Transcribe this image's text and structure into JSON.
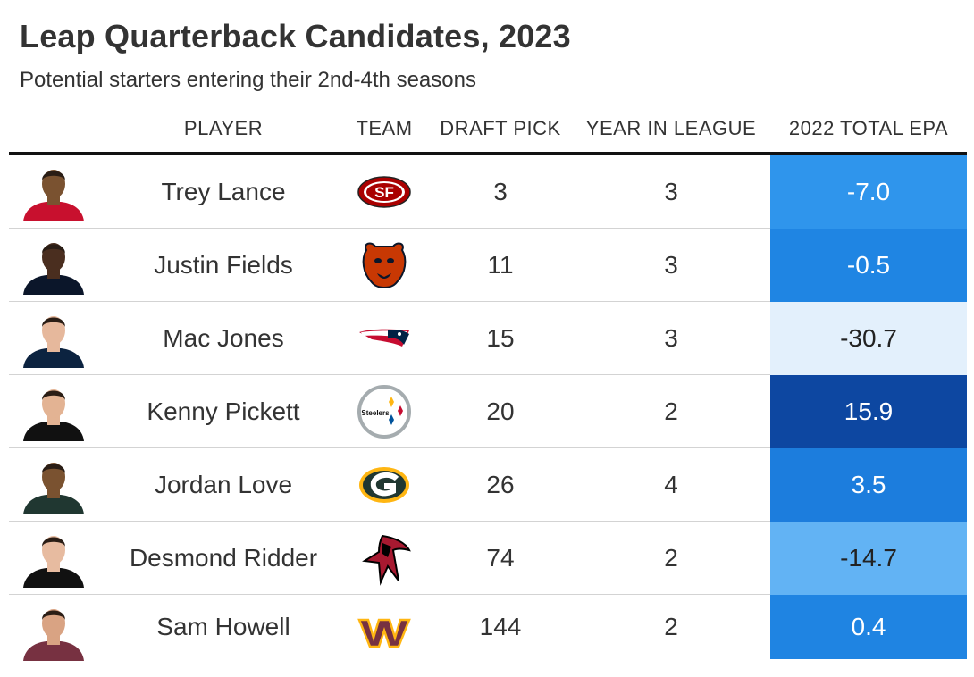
{
  "title": "Leap Quarterback Candidates, 2023",
  "subtitle": "Potential starters entering their 2nd-4th seasons",
  "headers": {
    "player": "PLAYER",
    "team": "TEAM",
    "draft_pick": "DRAFT PICK",
    "year": "YEAR IN LEAGUE",
    "epa": "2022 TOTAL EPA"
  },
  "colors": {
    "epa_neg_high": "#e3f0fc",
    "epa_neg_mid": "#5fb0f3",
    "epa_mid": "#2f95ec",
    "epa_pos": "#1e82e0",
    "epa_top": "#0d47a1"
  },
  "chart_data": {
    "type": "table",
    "columns": [
      "PLAYER",
      "TEAM",
      "DRAFT PICK",
      "YEAR IN LEAGUE",
      "2022 TOTAL EPA"
    ],
    "rows": [
      {
        "player": "Trey Lance",
        "team_logo": "49ers-logo-icon",
        "draft_pick": "3",
        "year": "3",
        "epa": "-7.0",
        "epa_value": -7.0,
        "bg": "#2f95ec",
        "fg": "#ffffff"
      },
      {
        "player": "Justin Fields",
        "team_logo": "bears-logo-icon",
        "draft_pick": "11",
        "year": "3",
        "epa": "-0.5",
        "epa_value": -0.5,
        "bg": "#1f85e3",
        "fg": "#ffffff"
      },
      {
        "player": "Mac Jones",
        "team_logo": "patriots-logo-icon",
        "draft_pick": "15",
        "year": "3",
        "epa": "-30.7",
        "epa_value": -30.7,
        "bg": "#e3f0fc",
        "fg": "#222222"
      },
      {
        "player": "Kenny Pickett",
        "team_logo": "steelers-logo-icon",
        "draft_pick": "20",
        "year": "2",
        "epa": "15.9",
        "epa_value": 15.9,
        "bg": "#0d47a1",
        "fg": "#ffffff"
      },
      {
        "player": "Jordan Love",
        "team_logo": "packers-logo-icon",
        "draft_pick": "26",
        "year": "4",
        "epa": "3.5",
        "epa_value": 3.5,
        "bg": "#1c7ddd",
        "fg": "#ffffff"
      },
      {
        "player": "Desmond Ridder",
        "team_logo": "falcons-logo-icon",
        "draft_pick": "74",
        "year": "2",
        "epa": "-14.7",
        "epa_value": -14.7,
        "bg": "#62b3f4",
        "fg": "#222222"
      },
      {
        "player": "Sam Howell",
        "team_logo": "commanders-logo-icon",
        "draft_pick": "144",
        "year": "2",
        "epa": "0.4",
        "epa_value": 0.4,
        "bg": "#1f84e2",
        "fg": "#ffffff"
      }
    ]
  }
}
